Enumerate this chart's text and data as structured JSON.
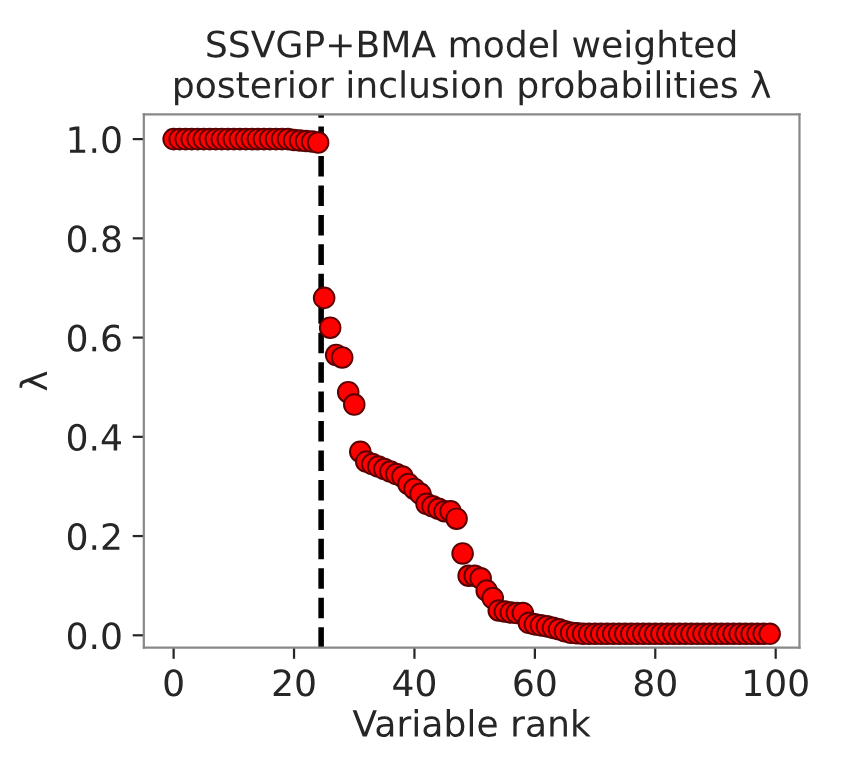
{
  "chart_data": {
    "type": "scatter",
    "title": "SSVGP+BMA model weighted\nposterior inclusion probabilities λ",
    "xlabel": "Variable rank",
    "ylabel": "λ",
    "x": [
      0,
      1,
      2,
      3,
      4,
      5,
      6,
      7,
      8,
      9,
      10,
      11,
      12,
      13,
      14,
      15,
      16,
      17,
      18,
      19,
      20,
      21,
      22,
      23,
      24,
      25,
      26,
      27,
      28,
      29,
      30,
      31,
      32,
      33,
      34,
      35,
      36,
      37,
      38,
      39,
      40,
      41,
      42,
      43,
      44,
      45,
      46,
      47,
      48,
      49,
      50,
      51,
      52,
      53,
      54,
      55,
      56,
      57,
      58,
      59,
      60,
      61,
      62,
      63,
      64,
      65,
      66,
      67,
      68,
      69,
      70,
      71,
      72,
      73,
      74,
      75,
      76,
      77,
      78,
      79,
      80,
      81,
      82,
      83,
      84,
      85,
      86,
      87,
      88,
      89,
      90,
      91,
      92,
      93,
      94,
      95,
      96,
      97,
      98,
      99
    ],
    "series": [
      {
        "color": "#ff0000",
        "values": [
          1.0,
          1.0,
          1.0,
          1.0,
          1.0,
          1.0,
          1.0,
          1.0,
          1.0,
          1.0,
          1.0,
          1.0,
          1.0,
          1.0,
          1.0,
          1.0,
          1.0,
          1.0,
          1.0,
          1.0,
          0.998,
          0.997,
          0.996,
          0.995,
          0.993,
          0.68,
          0.62,
          0.565,
          0.56,
          0.49,
          0.465,
          0.37,
          0.35,
          0.345,
          0.34,
          0.335,
          0.33,
          0.325,
          0.32,
          0.305,
          0.295,
          0.285,
          0.265,
          0.26,
          0.255,
          0.25,
          0.25,
          0.235,
          0.165,
          0.12,
          0.12,
          0.115,
          0.09,
          0.075,
          0.05,
          0.048,
          0.046,
          0.045,
          0.045,
          0.025,
          0.022,
          0.02,
          0.018,
          0.015,
          0.012,
          0.008,
          0.005,
          0.004,
          0.003,
          0.003,
          0.003,
          0.003,
          0.003,
          0.003,
          0.003,
          0.003,
          0.003,
          0.003,
          0.003,
          0.003,
          0.003,
          0.003,
          0.003,
          0.003,
          0.003,
          0.003,
          0.003,
          0.003,
          0.003,
          0.003,
          0.003,
          0.003,
          0.003,
          0.003,
          0.003,
          0.003,
          0.003,
          0.003,
          0.003,
          0.003
        ]
      }
    ],
    "marker": "circle",
    "ref_lines": [
      {
        "axis": "x",
        "value": 24.5,
        "color": "#000000",
        "line_style": "dashed"
      }
    ],
    "xlim": [
      -4.95,
      103.95
    ],
    "ylim": [
      -0.025,
      1.05
    ],
    "xticks": [
      0,
      20,
      40,
      60,
      80,
      100
    ],
    "yticks": [
      {
        "value": 0,
        "label": "0.0"
      },
      {
        "value": 0.2,
        "label": "0.2"
      },
      {
        "value": 0.4,
        "label": "0.4"
      },
      {
        "value": 0.6,
        "label": "0.6"
      },
      {
        "value": 0.8,
        "label": "0.8"
      },
      {
        "value": 1,
        "label": "1.0"
      }
    ],
    "grid": false
  }
}
